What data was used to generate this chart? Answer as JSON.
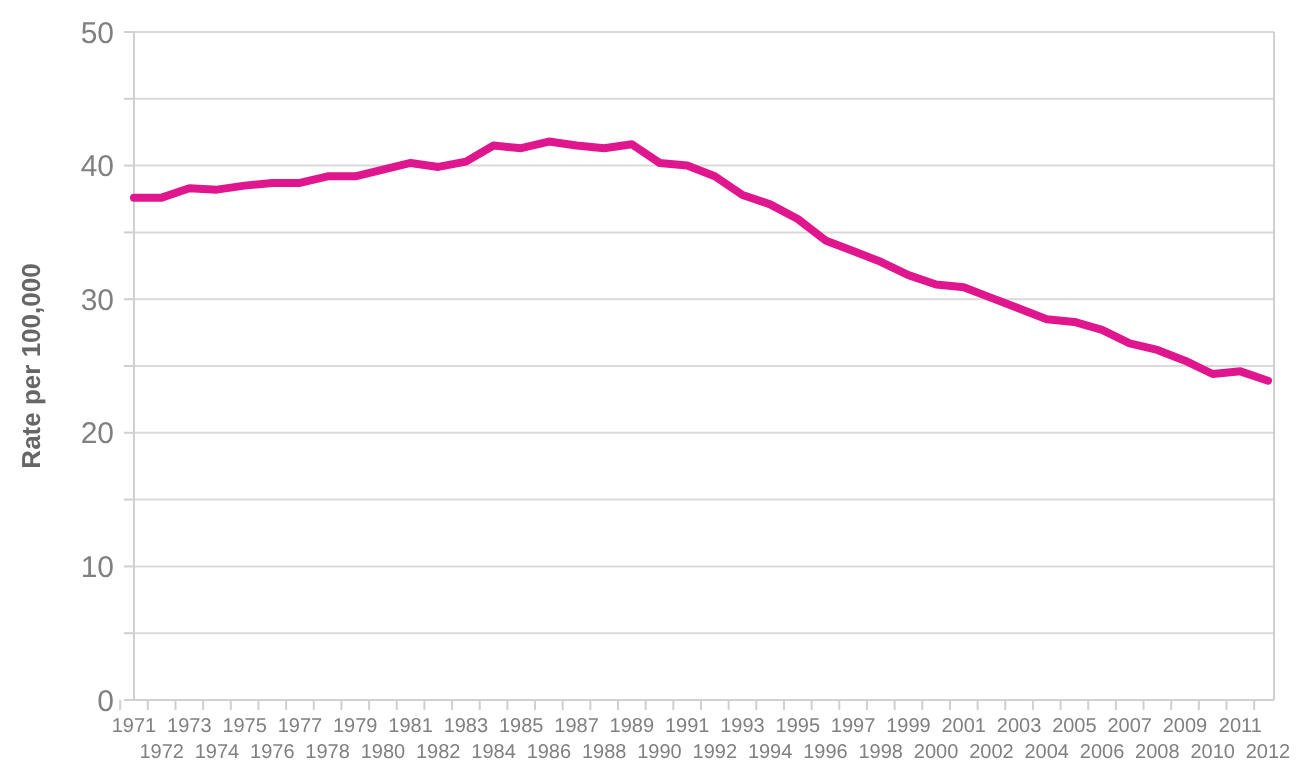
{
  "chart_data": {
    "type": "line",
    "ylabel": "Rate per 100,000",
    "categories": [
      "1971",
      "1972",
      "1973",
      "1974",
      "1975",
      "1976",
      "1977",
      "1978",
      "1979",
      "1980",
      "1981",
      "1982",
      "1983",
      "1984",
      "1985",
      "1986",
      "1987",
      "1988",
      "1989",
      "1990",
      "1991",
      "1992",
      "1993",
      "1994",
      "1995",
      "1996",
      "1997",
      "1998",
      "1999",
      "2000",
      "2001",
      "2002",
      "2003",
      "2004",
      "2005",
      "2006",
      "2007",
      "2008",
      "2009",
      "2010",
      "2011",
      "2012"
    ],
    "series": [
      {
        "color": "#e0168f",
        "values": [
          37.6,
          37.6,
          38.3,
          38.2,
          38.5,
          38.7,
          38.7,
          39.2,
          39.2,
          39.7,
          40.2,
          39.9,
          40.3,
          41.5,
          41.3,
          41.8,
          41.5,
          41.3,
          41.6,
          40.2,
          40.0,
          39.2,
          37.8,
          37.1,
          36.0,
          34.4,
          33.6,
          32.8,
          31.8,
          31.1,
          30.9,
          30.1,
          29.3,
          28.5,
          28.3,
          27.7,
          26.7,
          26.2,
          25.4,
          24.4,
          24.6,
          23.9
        ]
      }
    ],
    "ylim": [
      0,
      50
    ],
    "yticks": [
      0,
      {
        "value": 5,
        "label": null
      },
      10,
      {
        "value": 15,
        "label": null
      },
      20,
      {
        "value": 25,
        "label": null
      },
      30,
      {
        "value": 35,
        "label": null
      },
      40,
      {
        "value": 45,
        "label": null
      },
      50
    ],
    "grid": "y",
    "marker": "none",
    "line_style": "solid"
  }
}
